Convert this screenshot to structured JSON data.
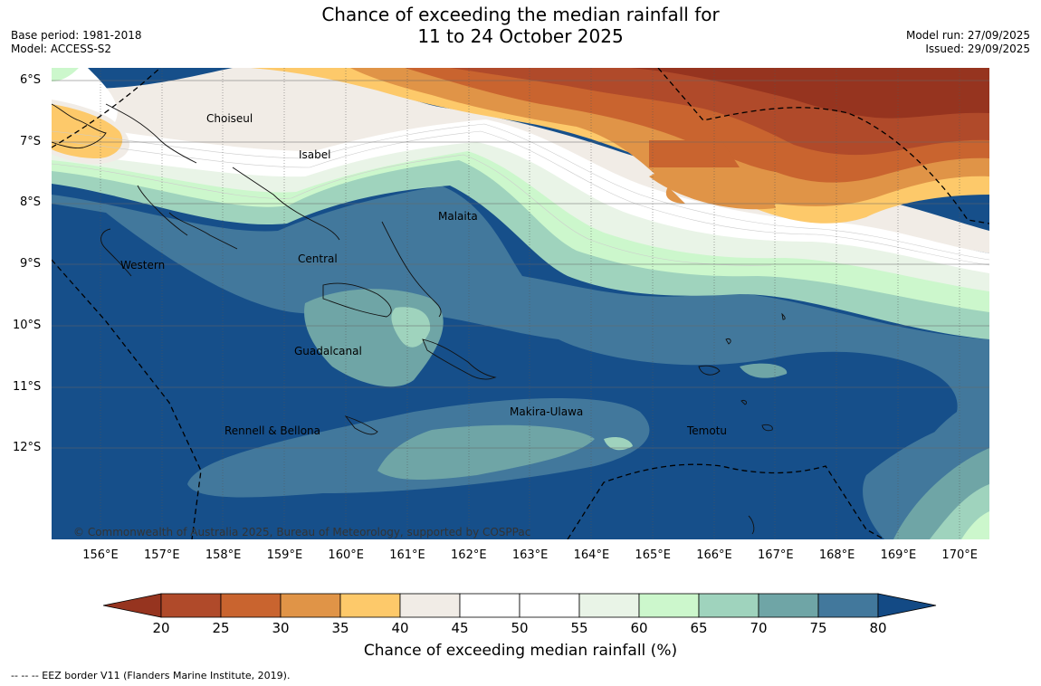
{
  "title": {
    "line1": "Chance of exceeding the median rainfall for",
    "line2": "11 to 24 October 2025"
  },
  "meta_left": {
    "base_period": "Base period: 1981-2018",
    "model": "Model: ACCESS-S2"
  },
  "meta_right": {
    "model_run": "Model run: 27/09/2025",
    "issued": "Issued: 29/09/2025"
  },
  "map": {
    "lat_ticks": [
      "6°S",
      "7°S",
      "8°S",
      "9°S",
      "10°S",
      "11°S",
      "12°S"
    ],
    "lon_ticks": [
      "156°E",
      "157°E",
      "158°E",
      "159°E",
      "160°E",
      "161°E",
      "162°E",
      "163°E",
      "164°E",
      "165°E",
      "166°E",
      "167°E",
      "168°E",
      "169°E",
      "170°E"
    ],
    "provinces": [
      "Choiseul",
      "Isabel",
      "Malaita",
      "Western",
      "Central",
      "Guadalcanal",
      "Makira-Ulawa",
      "Rennell & Bellona",
      "Temotu"
    ],
    "copyright": "© Commonwealth of Australia 2025, Bureau of Meteorology, supported by COSPPac"
  },
  "colorbar": {
    "ticks": [
      "20",
      "25",
      "30",
      "35",
      "40",
      "45",
      "50",
      "55",
      "60",
      "65",
      "70",
      "75",
      "80"
    ],
    "colors": [
      "#b04a2a",
      "#c9642f",
      "#e09447",
      "#fdc96a",
      "#f1ece6",
      "#ffffff",
      "#ffffff",
      "#e9f4e7",
      "#ccf7cc",
      "#9fd3bd",
      "#6fa5a6",
      "#42789c",
      "#164f8a"
    ],
    "below_color": "#96341f",
    "above_color": "#134a85",
    "label": "Chance of exceeding median rainfall (%)"
  },
  "footnote": "--  --  -- EEZ border V11 (Flanders Marine Institute, 2019)."
}
